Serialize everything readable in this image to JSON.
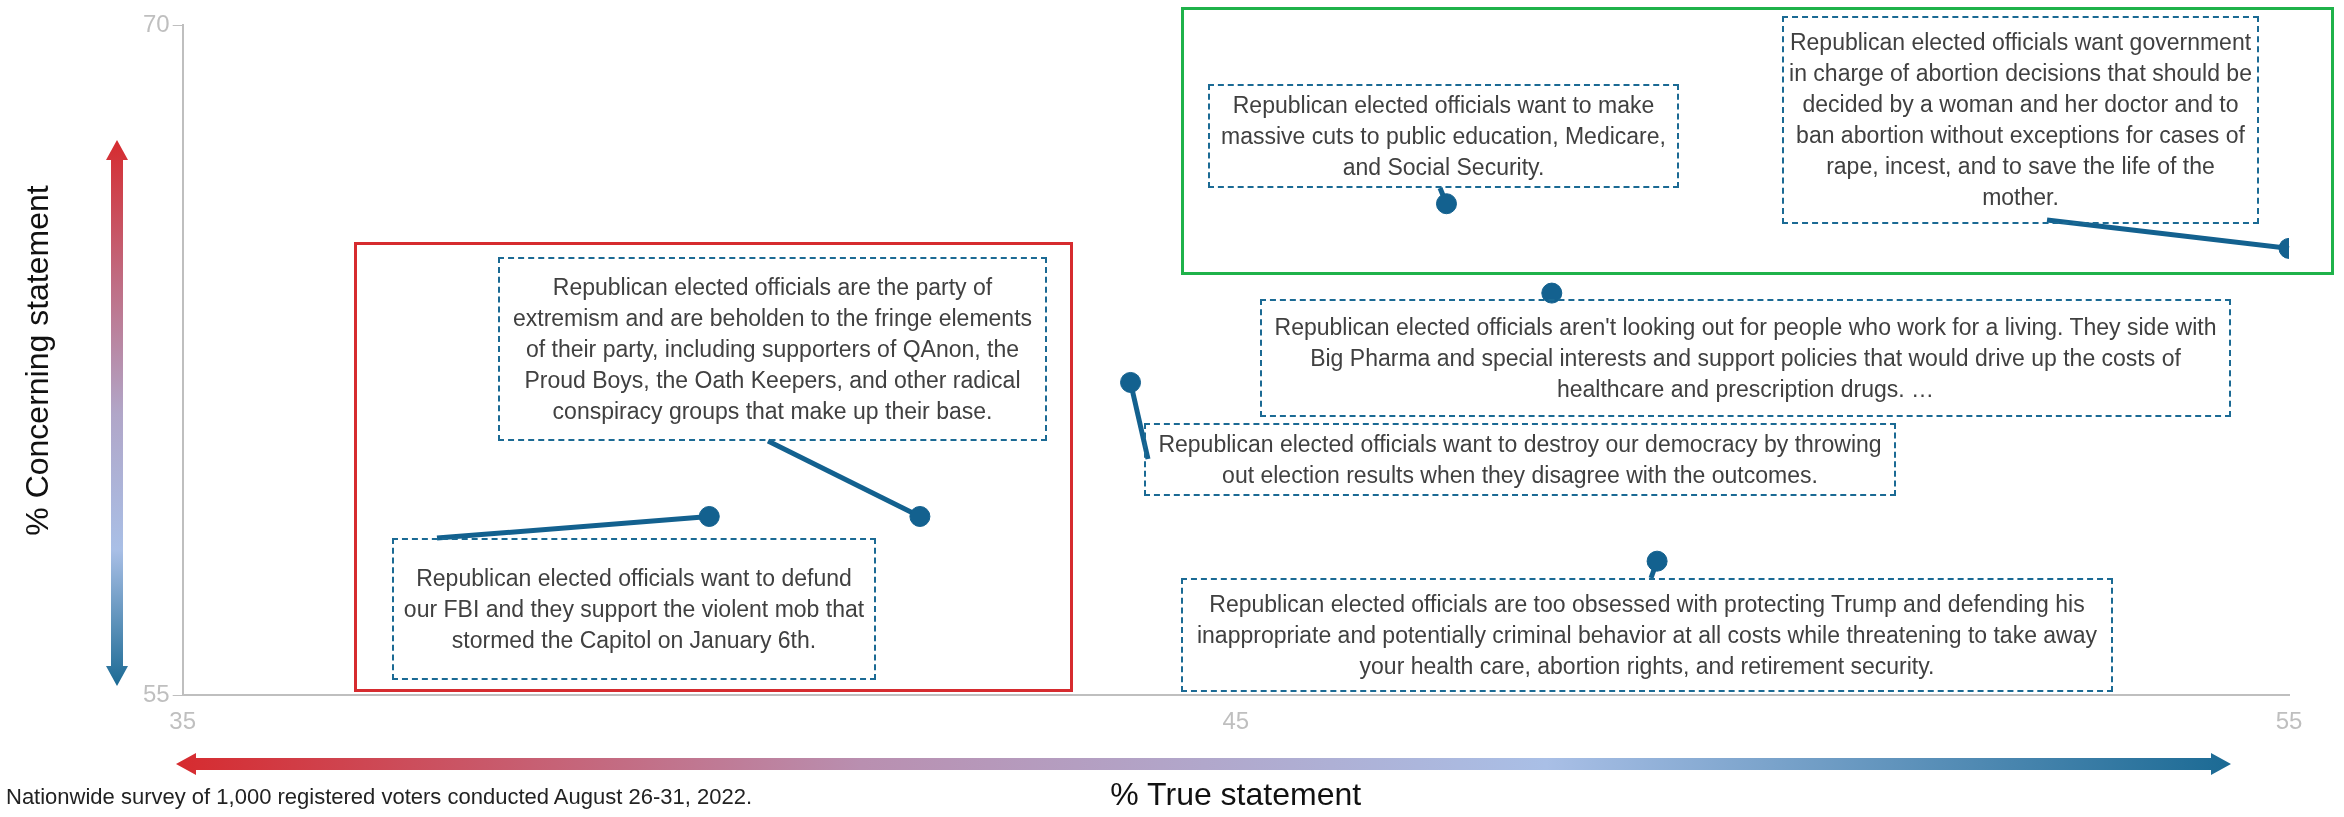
{
  "chart_data": {
    "type": "scatter",
    "xlabel": "% True statement",
    "ylabel": "% Concerning statement",
    "x": [
      40,
      42,
      44,
      47,
      48,
      49,
      55
    ],
    "series": [
      {
        "color": "#13618f",
        "values": [
          59,
          59,
          62,
          66,
          64,
          58,
          65
        ]
      }
    ],
    "xlim": [
      35,
      55
    ],
    "xticks": [
      35,
      45,
      55
    ],
    "ylim": [
      55,
      70
    ],
    "yticks": [
      55,
      70
    ],
    "grid": false,
    "legend": false,
    "marker": "circle",
    "annotations": [
      {
        "text": "Republican elected officials want to defund our FBI and they support the violent mob that stormed the Capitol on January 6th.",
        "x": 40,
        "y": 59
      },
      {
        "text": "Republican elected officials are the party of extremism and are beholden to the fringe elements of their party, including supporters of QAnon, the Proud Boys, the Oath Keepers, and other radical conspiracy groups that make up their base.",
        "x": 42,
        "y": 59
      },
      {
        "text": "Republican elected officials want to destroy our democracy by throwing out election results when they disagree with the outcomes.",
        "x": 44,
        "y": 62
      },
      {
        "text": "Republican elected officials want to make massive cuts to public education, Medicare, and Social Security.",
        "x": 47,
        "y": 66
      },
      {
        "text": "Republican elected officials aren't looking out for people who work for a living. They side with Big Pharma and special interests and support policies that would drive up the costs of healthcare and prescription drugs. …",
        "x": 48,
        "y": 64
      },
      {
        "text": "Republican elected officials are too obsessed with protecting Trump and defending his inappropriate and potentially criminal behavior at all costs while threatening to take away your health care, abortion rights, and retirement security.",
        "x": 49,
        "y": 58
      },
      {
        "text": "Republican elected officials want government in charge of abortion decisions that should be decided by a woman and her doctor and to ban abortion without exceptions for cases of rape, incest, and to save the life of the mother.",
        "x": 55,
        "y": 65
      },
      "Nationwide survey of 1,000 registered voters conducted August 26-31, 2022."
    ]
  }
}
